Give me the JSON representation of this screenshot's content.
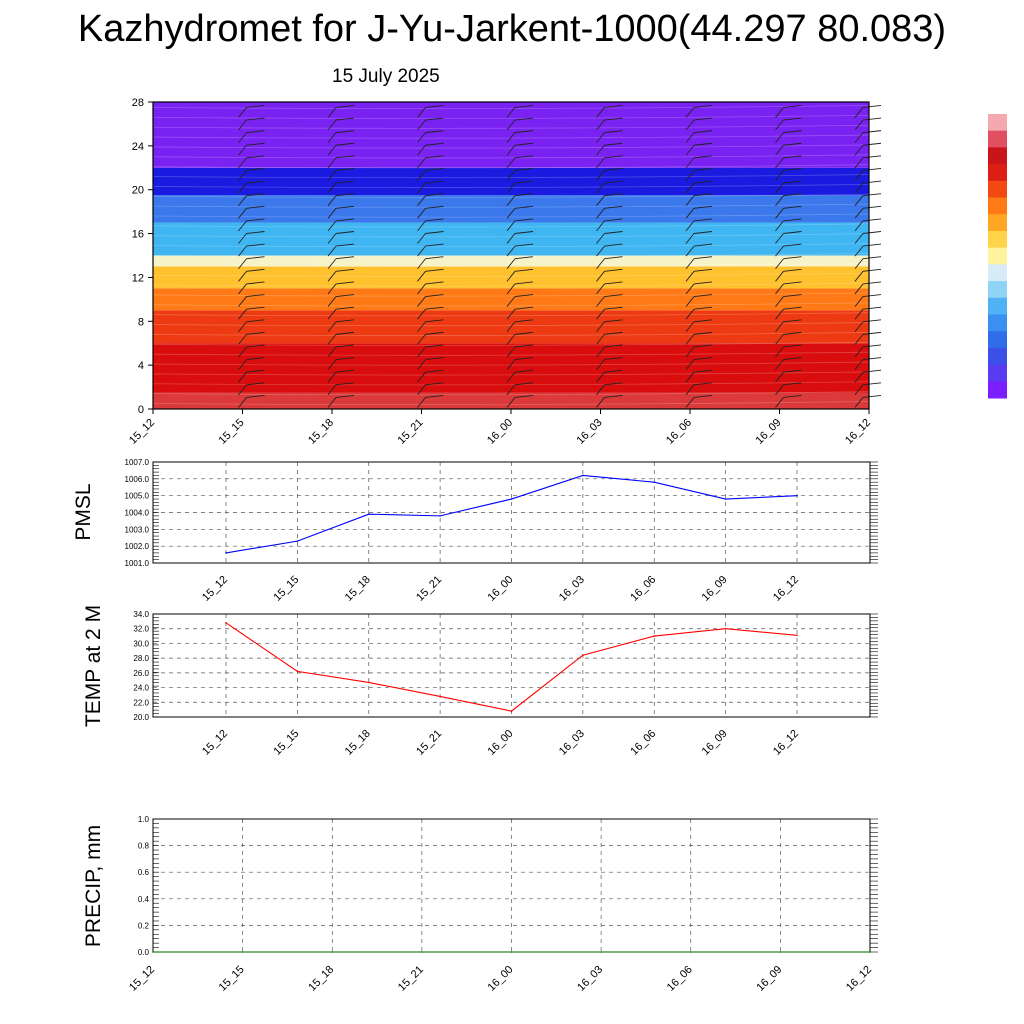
{
  "title": "Kazhydromet for J-Yu-Jarkent-1000(44.297 80.083)",
  "date": "15 July 2025",
  "colorbar": {
    "colors": [
      "#7a1fff",
      "#5a3cf0",
      "#3c4fe6",
      "#2f6ee8",
      "#3b8ff0",
      "#4fb2f4",
      "#8fd4f5",
      "#d7ecf6",
      "#fff3a0",
      "#ffd34a",
      "#ffa623",
      "#ff7a16",
      "#f24812",
      "#dc1e14",
      "#c9141a",
      "#e05060",
      "#f4a9b0"
    ]
  },
  "chart_data": [
    {
      "type": "heatmap",
      "description_panel": "cross-section",
      "y_ticks": [
        "0",
        "4",
        "8",
        "12",
        "16",
        "20",
        "24",
        "28"
      ],
      "ylim": [
        0,
        28
      ],
      "x_ticks": [
        "15_12",
        "15_15",
        "15_18",
        "15_21",
        "16_00",
        "16_03",
        "16_06",
        "16_09",
        "16_12"
      ],
      "layers": [
        {
          "from": 0,
          "to": 1.5,
          "color": "#dc3a3a"
        },
        {
          "from": 1.5,
          "to": 6,
          "color": "#d90d0d"
        },
        {
          "from": 6,
          "to": 9,
          "color": "#ee3a12"
        },
        {
          "from": 9,
          "to": 11,
          "color": "#ff7a16"
        },
        {
          "from": 11,
          "to": 13,
          "color": "#ffc12e"
        },
        {
          "from": 13,
          "to": 14,
          "color": "#f7f3c8"
        },
        {
          "from": 14,
          "to": 17,
          "color": "#3fb6f2"
        },
        {
          "from": 17,
          "to": 19.5,
          "color": "#3a78ec"
        },
        {
          "from": 19.5,
          "to": 22,
          "color": "#1a1ae0"
        },
        {
          "from": 22,
          "to": 28,
          "color": "#7a22f2"
        }
      ]
    },
    {
      "type": "line",
      "ylabel": "PMSL",
      "x": [
        "15_12",
        "15_15",
        "15_18",
        "15_21",
        "16_00",
        "16_03",
        "16_06",
        "16_09",
        "16_12"
      ],
      "ylim": [
        1001.0,
        1007.0
      ],
      "y_ticks": [
        "1001.0",
        "1002.0",
        "1003.0",
        "1004.0",
        "1005.0",
        "1006.0",
        "1007.0"
      ],
      "series": [
        {
          "values": [
            1001.6,
            1002.3,
            1003.9,
            1003.8,
            1004.8,
            1006.2,
            1005.8,
            1004.8,
            1005.0
          ],
          "color": "#0000ff"
        }
      ],
      "grid": true
    },
    {
      "type": "line",
      "ylabel": "TEMP at 2 M",
      "x": [
        "15_12",
        "15_15",
        "15_18",
        "15_21",
        "16_00",
        "16_03",
        "16_06",
        "16_09",
        "16_12"
      ],
      "ylim": [
        20.0,
        34.0
      ],
      "y_ticks": [
        "20.0",
        "22.0",
        "24.0",
        "26.0",
        "28.0",
        "30.0",
        "32.0",
        "34.0"
      ],
      "series": [
        {
          "values": [
            32.8,
            26.2,
            24.7,
            22.8,
            20.8,
            28.4,
            31.0,
            32.0,
            31.1
          ],
          "color": "#ff0000"
        }
      ],
      "grid": true
    },
    {
      "type": "line",
      "ylabel": "PRECIP, mm",
      "x": [
        "15_12",
        "15_15",
        "15_18",
        "15_21",
        "16_00",
        "16_03",
        "16_06",
        "16_09",
        "16_12"
      ],
      "ylim": [
        0.0,
        1.0
      ],
      "y_ticks": [
        "0.0",
        "0.2",
        "0.4",
        "0.6",
        "0.8",
        "1.0"
      ],
      "series": [
        {
          "values": [
            0,
            0,
            0,
            0,
            0,
            0,
            0,
            0,
            0
          ],
          "color": "#006400"
        }
      ],
      "grid": true
    }
  ]
}
